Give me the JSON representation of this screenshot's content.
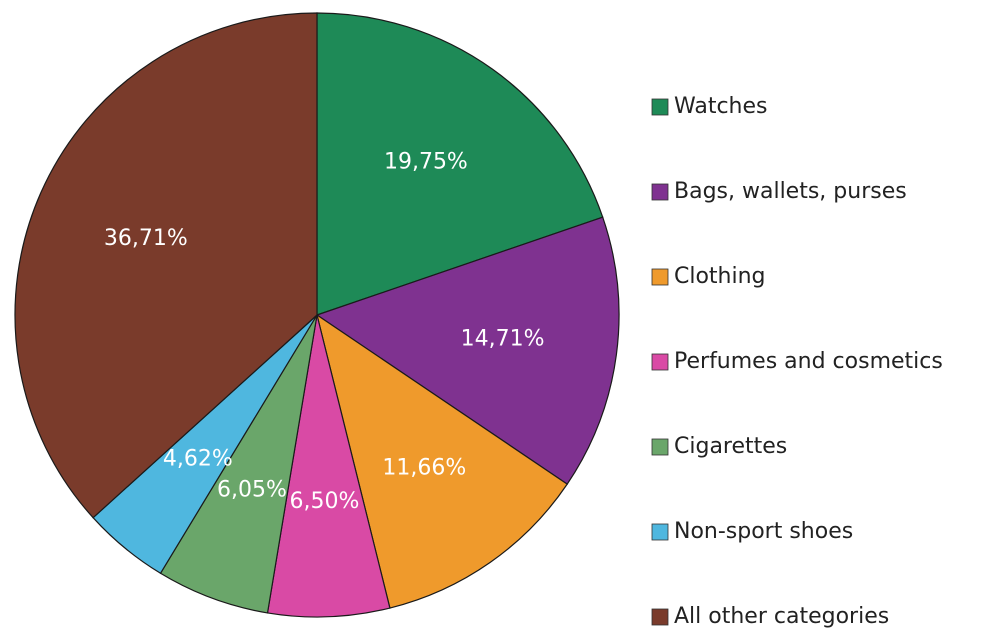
{
  "chart_data": {
    "type": "pie",
    "start_angle_deg": 0,
    "direction": "clockwise",
    "legend_placement": "right",
    "slices": [
      {
        "label": "Watches",
        "value": 19.75,
        "value_label": "19,75%",
        "color": "#1e8a57"
      },
      {
        "label": "Bags, wallets, purses",
        "value": 14.71,
        "value_label": "14,71%",
        "color": "#7f3290"
      },
      {
        "label": "Clothing",
        "value": 11.66,
        "value_label": "11,66%",
        "color": "#ef9a2c"
      },
      {
        "label": "Perfumes and cosmetics",
        "value": 6.5,
        "value_label": "6,50%",
        "color": "#d94aa5"
      },
      {
        "label": "Cigarettes",
        "value": 6.05,
        "value_label": "6,05%",
        "color": "#6aa66a"
      },
      {
        "label": "Non-sport shoes",
        "value": 4.62,
        "value_label": "4,62%",
        "color": "#4fb7df"
      },
      {
        "label": "All other categories",
        "value": 36.71,
        "value_label": "36,71%",
        "color": "#7a3b2b"
      }
    ]
  }
}
